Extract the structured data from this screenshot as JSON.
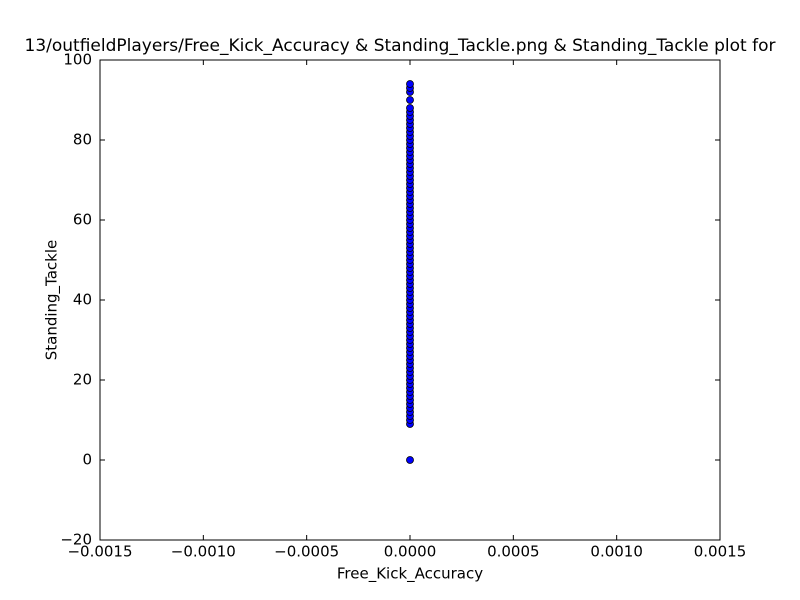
{
  "chart_data": {
    "type": "scatter",
    "title": "13/outfieldPlayers/Free_Kick_Accuracy & Standing_Tackle.png & Standing_Tackle plot for",
    "xlabel": "Free_Kick_Accuracy",
    "ylabel": "Standing_Tackle",
    "color": "#0000ff",
    "edgecolor": "#000000",
    "xlim": [
      -0.0015,
      0.0015
    ],
    "xticks": [
      {
        "value": -0.0015,
        "label": "−0.0015"
      },
      {
        "value": -0.001,
        "label": "−0.0010"
      },
      {
        "value": -0.0005,
        "label": "−0.0005"
      },
      {
        "value": 0,
        "label": "0.0000"
      },
      {
        "value": 0.0005,
        "label": "0.0005"
      },
      {
        "value": 0.001,
        "label": "0.0010"
      },
      {
        "value": 0.0015,
        "label": "0.0015"
      }
    ],
    "ylim": [
      -20,
      100
    ],
    "yticks": [
      {
        "value": -20,
        "label": "−20"
      },
      0,
      20,
      40,
      60,
      80,
      100
    ],
    "x": [
      0,
      0,
      0,
      0,
      0,
      0,
      0,
      0,
      0,
      0,
      0,
      0,
      0,
      0,
      0,
      0,
      0,
      0,
      0,
      0,
      0,
      0,
      0,
      0,
      0,
      0,
      0,
      0,
      0,
      0,
      0,
      0,
      0,
      0,
      0,
      0,
      0,
      0,
      0,
      0,
      0,
      0,
      0,
      0,
      0,
      0,
      0,
      0,
      0,
      0,
      0,
      0,
      0,
      0,
      0,
      0,
      0,
      0,
      0,
      0,
      0,
      0,
      0,
      0,
      0,
      0,
      0,
      0,
      0,
      0,
      0,
      0,
      0,
      0,
      0,
      0,
      0,
      0,
      0,
      0,
      0,
      0,
      0,
      0,
      0
    ],
    "y": [
      0,
      9,
      10,
      11,
      12,
      13,
      14,
      15,
      16,
      17,
      18,
      19,
      20,
      21,
      22,
      23,
      24,
      25,
      26,
      27,
      28,
      29,
      30,
      31,
      32,
      33,
      34,
      35,
      36,
      37,
      38,
      39,
      40,
      41,
      42,
      43,
      44,
      45,
      46,
      47,
      48,
      49,
      50,
      51,
      52,
      53,
      54,
      55,
      56,
      57,
      58,
      59,
      60,
      61,
      62,
      63,
      64,
      65,
      66,
      67,
      68,
      69,
      70,
      71,
      72,
      73,
      74,
      75,
      76,
      77,
      78,
      79,
      80,
      81,
      82,
      83,
      84,
      85,
      86,
      87,
      88,
      90,
      92,
      93,
      94
    ]
  }
}
